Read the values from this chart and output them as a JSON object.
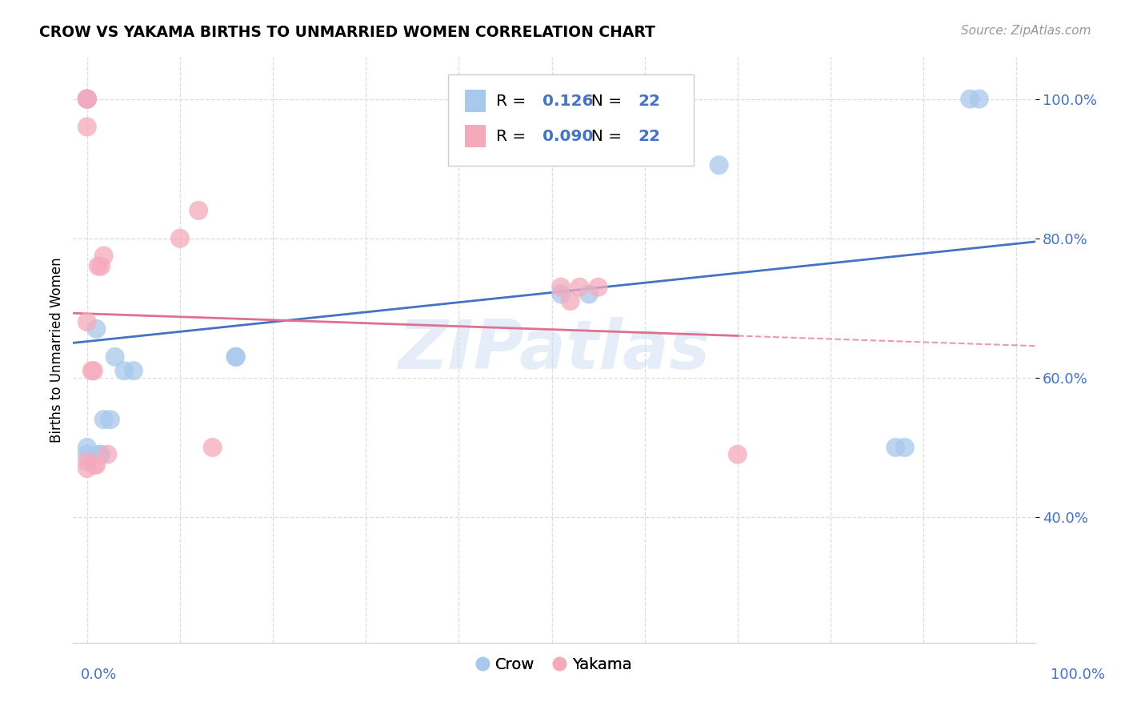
{
  "title": "CROW VS YAKAMA BIRTHS TO UNMARRIED WOMEN CORRELATION CHART",
  "source": "Source: ZipAtlas.com",
  "ylabel": "Births to Unmarried Women",
  "crow_R": "0.126",
  "crow_N": "22",
  "yakama_R": "0.090",
  "yakama_N": "22",
  "crow_color": "#A8C8EC",
  "yakama_color": "#F5AABC",
  "crow_line_color": "#4472C4",
  "yakama_line_color": "#E07090",
  "watermark": "ZIPatlas",
  "crow_x": [
    0.0,
    0.0,
    0.0,
    0.0,
    0.0,
    0.01,
    0.013,
    0.015,
    0.018,
    0.025,
    0.03,
    0.04,
    0.05,
    0.16,
    0.16,
    0.51,
    0.54,
    0.68,
    0.87,
    0.88,
    0.95,
    0.96
  ],
  "crow_y": [
    1.0,
    1.0,
    1.0,
    0.5,
    0.49,
    0.67,
    0.49,
    0.49,
    0.54,
    0.54,
    0.63,
    0.61,
    0.61,
    0.63,
    0.63,
    0.72,
    0.72,
    0.905,
    0.5,
    0.5,
    1.0,
    1.0
  ],
  "yakama_x": [
    0.0,
    0.0,
    0.0,
    0.0,
    0.0,
    0.0,
    0.005,
    0.007,
    0.008,
    0.01,
    0.012,
    0.015,
    0.018,
    0.022,
    0.1,
    0.12,
    0.135,
    0.51,
    0.52,
    0.53,
    0.55,
    0.7
  ],
  "yakama_y": [
    1.0,
    1.0,
    0.96,
    0.68,
    0.48,
    0.47,
    0.61,
    0.61,
    0.475,
    0.475,
    0.76,
    0.76,
    0.775,
    0.49,
    0.8,
    0.84,
    0.5,
    0.73,
    0.71,
    0.73,
    0.73,
    0.49
  ],
  "ylim_min": 0.22,
  "ylim_max": 1.06,
  "xlim_min": -0.015,
  "xlim_max": 1.02,
  "yticks": [
    0.4,
    0.6,
    0.8,
    1.0
  ],
  "ytick_labels": [
    "40.0%",
    "60.0%",
    "80.0%",
    "100.0%"
  ],
  "background_color": "#FFFFFF",
  "grid_color": "#DDDDDD"
}
